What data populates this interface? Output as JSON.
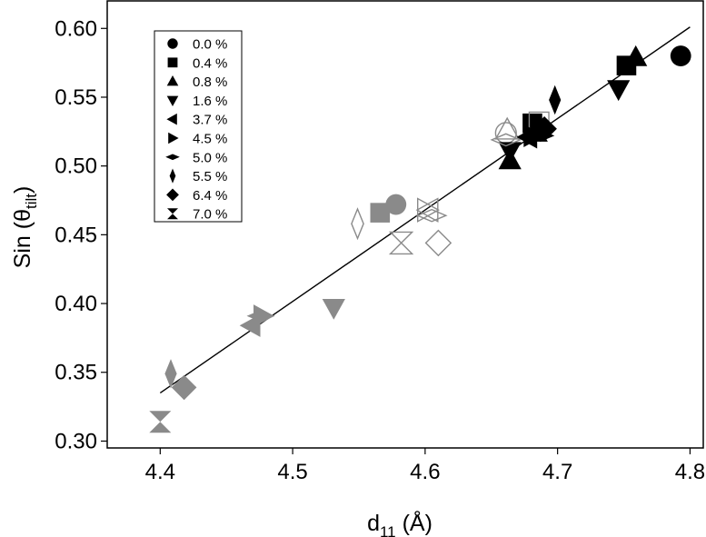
{
  "chart_data": {
    "type": "scatter",
    "xlabel": {
      "main": "d",
      "sub": "11",
      "unit": " (Å)"
    },
    "ylabel": {
      "main": "Sin (θ",
      "sub": "tilt",
      "end": ")"
    },
    "xlim": [
      4.36,
      4.81
    ],
    "ylim": [
      0.295,
      0.62
    ],
    "x_ticks": [
      "4.4",
      "4.5",
      "4.6",
      "4.7",
      "4.8"
    ],
    "y_ticks": [
      "0.30",
      "0.35",
      "0.40",
      "0.45",
      "0.50",
      "0.55",
      "0.60"
    ],
    "grid": false,
    "legend_position": "top-left",
    "colors": {
      "filled_black": "#000000",
      "filled_gray": "#8a8a8a",
      "open_gray": "#8a8a8a",
      "fit_line": "#000000"
    },
    "fit_line": {
      "x": [
        4.4,
        4.8
      ],
      "y": [
        0.335,
        0.601
      ]
    },
    "series": [
      {
        "name": "0.0 %",
        "marker": "circle",
        "points": [
          [
            4.793,
            0.58,
            "filled_black"
          ],
          [
            4.578,
            0.472,
            "filled_gray"
          ],
          [
            4.661,
            0.524,
            "open_gray"
          ]
        ]
      },
      {
        "name": "0.4 %",
        "marker": "square",
        "points": [
          [
            4.752,
            0.573,
            "filled_black"
          ],
          [
            4.681,
            0.531,
            "filled_black"
          ],
          [
            4.566,
            0.466,
            "filled_gray"
          ],
          [
            4.686,
            0.532,
            "open_gray"
          ]
        ]
      },
      {
        "name": "0.8 %",
        "marker": "triangle-up",
        "points": [
          [
            4.759,
            0.579,
            "filled_black"
          ],
          [
            4.664,
            0.504,
            "filled_black"
          ],
          [
            4.684,
            0.524,
            "filled_black"
          ],
          [
            4.662,
            0.526,
            "open_gray"
          ]
        ]
      },
      {
        "name": "1.6 %",
        "marker": "triangle-down",
        "points": [
          [
            4.746,
            0.556,
            "filled_black"
          ],
          [
            4.664,
            0.511,
            "filled_black"
          ],
          [
            4.531,
            0.397,
            "filled_gray"
          ]
        ]
      },
      {
        "name": "3.7 %",
        "marker": "triangle-left",
        "points": [
          [
            4.469,
            0.384,
            "filled_gray"
          ],
          [
            4.678,
            0.521,
            "filled_black"
          ],
          [
            4.603,
            0.468,
            "open_gray"
          ]
        ]
      },
      {
        "name": "4.5 %",
        "marker": "triangle-right",
        "points": [
          [
            4.681,
            0.522,
            "filled_black"
          ],
          [
            4.477,
            0.391,
            "filled_gray"
          ],
          [
            4.601,
            0.468,
            "open_gray"
          ]
        ]
      },
      {
        "name": "5.0 %",
        "marker": "diamond-h",
        "points": [
          [
            4.476,
            0.391,
            "filled_gray"
          ],
          [
            4.687,
            0.522,
            "filled_black"
          ],
          [
            4.605,
            0.464,
            "open_gray"
          ],
          [
            4.661,
            0.519,
            "open_gray"
          ]
        ]
      },
      {
        "name": "5.5 %",
        "marker": "diamond-tall",
        "points": [
          [
            4.408,
            0.349,
            "filled_gray"
          ],
          [
            4.698,
            0.548,
            "filled_black"
          ],
          [
            4.549,
            0.458,
            "open_gray"
          ]
        ]
      },
      {
        "name": "6.4 %",
        "marker": "diamond",
        "points": [
          [
            4.418,
            0.339,
            "filled_gray"
          ],
          [
            4.69,
            0.527,
            "filled_black"
          ],
          [
            4.61,
            0.444,
            "open_gray"
          ]
        ]
      },
      {
        "name": "7.0 %",
        "marker": "hourglass",
        "points": [
          [
            4.4,
            0.314,
            "filled_gray"
          ],
          [
            4.582,
            0.444,
            "open_gray"
          ]
        ]
      }
    ]
  }
}
